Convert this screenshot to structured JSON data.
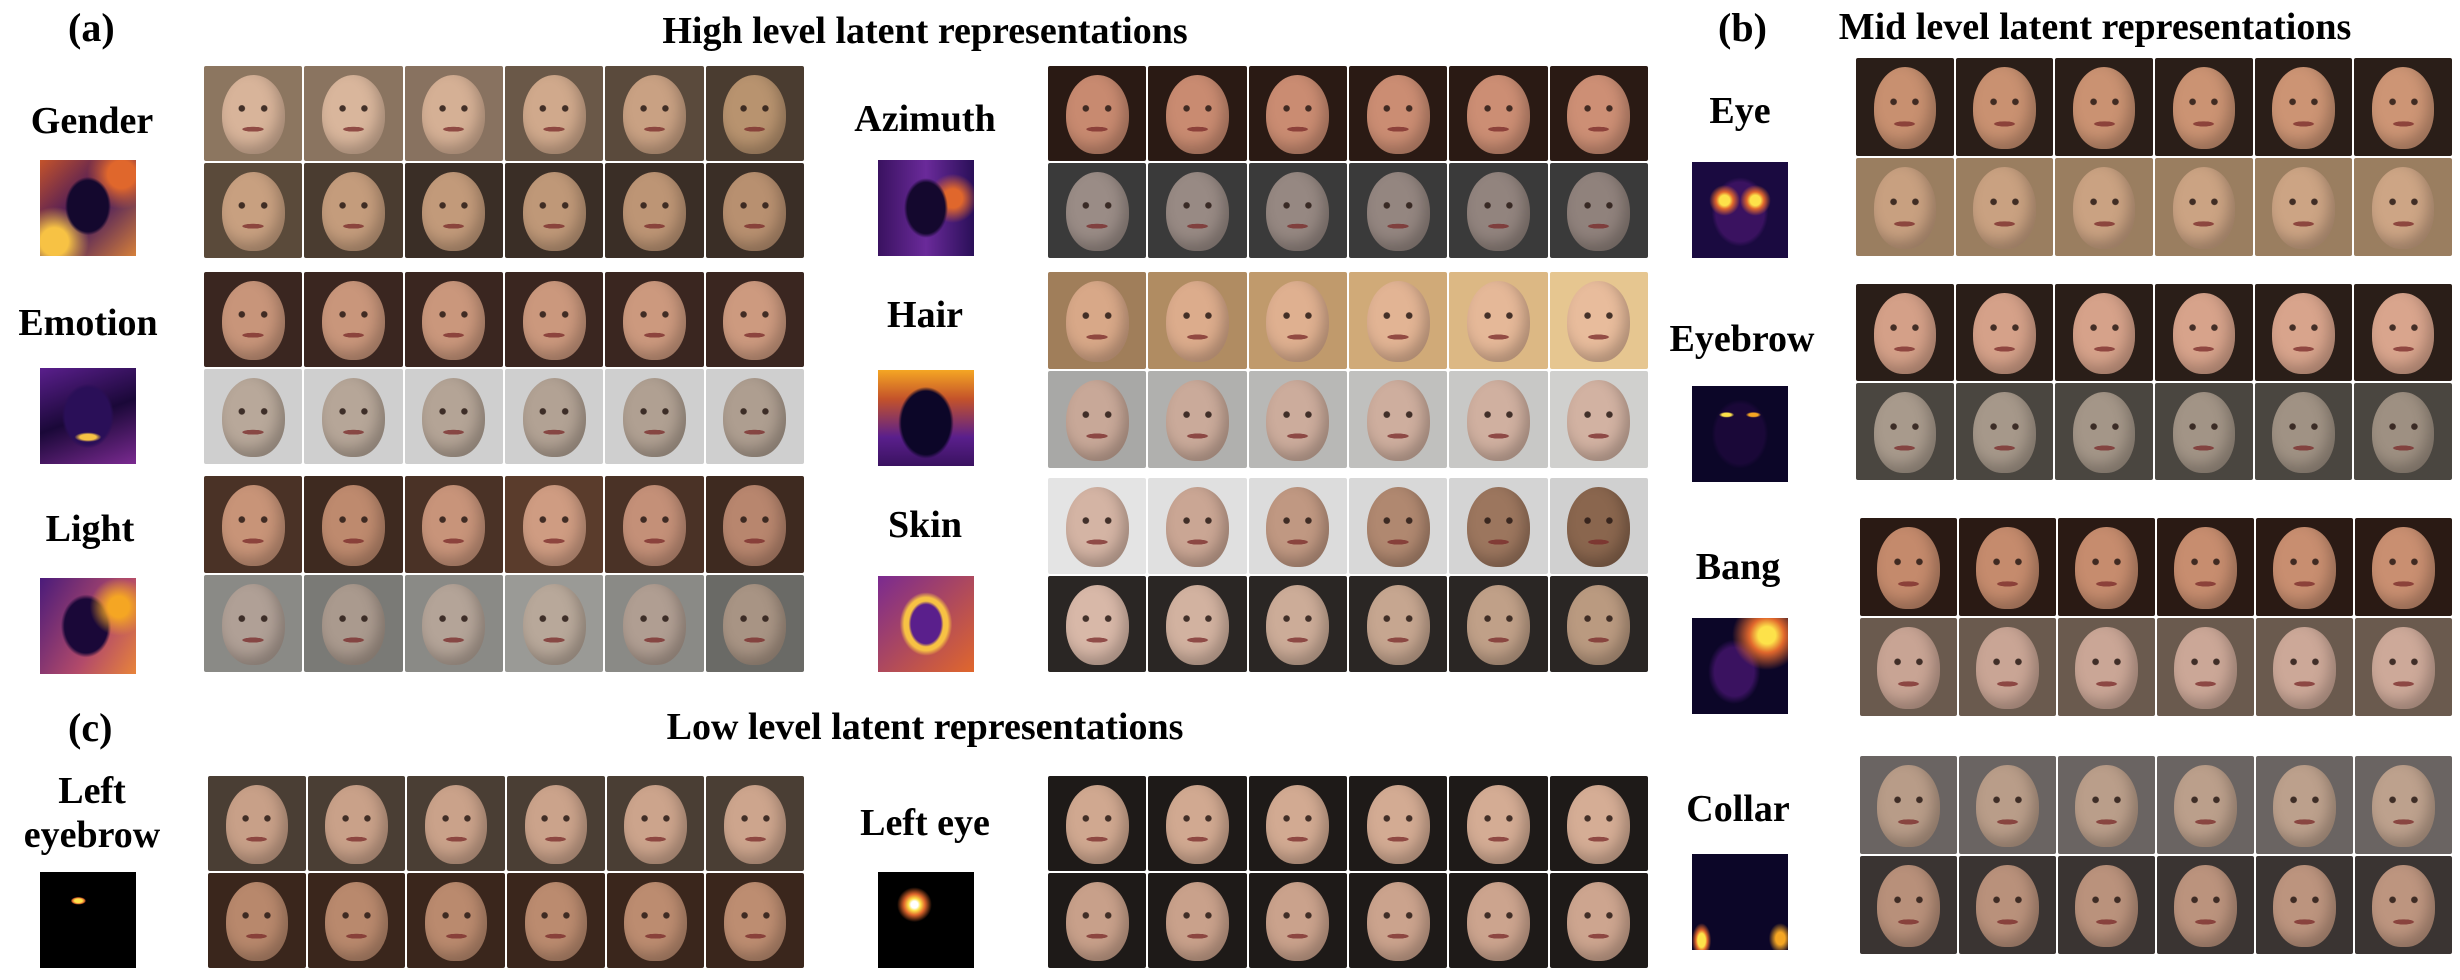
{
  "panels": {
    "a": "(a)",
    "b": "(b)",
    "c": "(c)"
  },
  "titles": {
    "high": "High level latent representations",
    "mid": "Mid level latent representations",
    "low": "Low level latent representations"
  },
  "attributes": {
    "gender": "Gender",
    "emotion": "Emotion",
    "light": "Light",
    "azimuth": "Azimuth",
    "hair": "Hair",
    "skin": "Skin",
    "eye": "Eye",
    "eyebrow": "Eyebrow",
    "bang": "Bang",
    "collar": "Collar",
    "left_eyebrow": "Left eyebrow",
    "left_eye": "Left eye"
  },
  "colors": {
    "heatmap_dark": "#0c0628",
    "heatmap_mid": "#5a1f8c",
    "heatmap_hot": "#f5a623",
    "heatmap_peak": "#fde24a"
  }
}
